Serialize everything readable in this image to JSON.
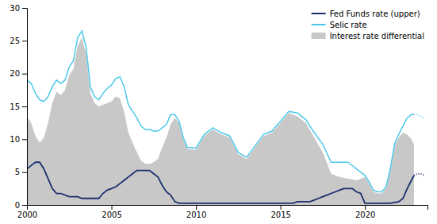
{
  "chart_data": {
    "type": "line",
    "xlim": [
      2000,
      2023.7
    ],
    "xticks": [
      2000,
      2005,
      2010,
      2015,
      2020
    ],
    "ylim": [
      0,
      30
    ],
    "yticks": [
      0,
      5,
      10,
      15,
      20,
      25,
      30
    ],
    "grid": false,
    "legend": "upper right",
    "series": [
      {
        "name": "Fed Funds rate (upper)",
        "type": "line",
        "color": "#1a2f6e",
        "line_style": "solid",
        "x": [
          2000.0,
          2000.25,
          2000.5,
          2000.75,
          2001.0,
          2001.25,
          2001.5,
          2001.75,
          2002.0,
          2002.25,
          2002.5,
          2002.75,
          2003.0,
          2003.25,
          2003.5,
          2003.75,
          2004.0,
          2004.25,
          2004.5,
          2004.75,
          2005.0,
          2005.25,
          2005.5,
          2005.75,
          2006.0,
          2006.25,
          2006.5,
          2006.75,
          2007.0,
          2007.25,
          2007.5,
          2007.75,
          2008.0,
          2008.25,
          2008.5,
          2008.75,
          2009.0,
          2009.5,
          2010.0,
          2010.5,
          2011.0,
          2011.5,
          2012.0,
          2012.5,
          2013.0,
          2013.5,
          2014.0,
          2014.5,
          2015.0,
          2015.25,
          2015.5,
          2015.75,
          2016.0,
          2016.25,
          2016.5,
          2016.75,
          2017.0,
          2017.25,
          2017.5,
          2017.75,
          2018.0,
          2018.25,
          2018.5,
          2018.75,
          2019.0,
          2019.25,
          2019.5,
          2019.75,
          2020.0,
          2020.25,
          2020.5,
          2020.75,
          2021.0,
          2021.5,
          2022.0,
          2022.25,
          2022.5,
          2022.75,
          2022.9
        ],
        "values": [
          5.5,
          6.0,
          6.5,
          6.5,
          5.5,
          4.0,
          2.5,
          1.75,
          1.75,
          1.5,
          1.25,
          1.25,
          1.25,
          1.0,
          1.0,
          1.0,
          1.0,
          1.0,
          1.75,
          2.25,
          2.5,
          2.75,
          3.25,
          3.75,
          4.25,
          4.75,
          5.25,
          5.25,
          5.25,
          5.25,
          4.75,
          4.25,
          3.0,
          2.0,
          1.5,
          0.5,
          0.25,
          0.25,
          0.25,
          0.25,
          0.25,
          0.25,
          0.25,
          0.25,
          0.25,
          0.25,
          0.25,
          0.25,
          0.25,
          0.25,
          0.25,
          0.25,
          0.5,
          0.5,
          0.5,
          0.5,
          0.75,
          1.0,
          1.25,
          1.5,
          1.75,
          2.0,
          2.25,
          2.5,
          2.5,
          2.5,
          2.0,
          1.75,
          0.25,
          0.25,
          0.25,
          0.25,
          0.25,
          0.25,
          0.5,
          1.0,
          2.5,
          3.75,
          4.5
        ]
      },
      {
        "type": "line",
        "color": "#1a2f6e",
        "line_style": "dotted",
        "x": [
          2022.9,
          2023.1,
          2023.3,
          2023.5
        ],
        "values": [
          4.5,
          4.75,
          4.75,
          4.5
        ]
      },
      {
        "name": "Selic rate",
        "type": "line",
        "color": "#4dc8e8",
        "line_style": "solid",
        "x": [
          2000.0,
          2000.25,
          2000.5,
          2000.75,
          2001.0,
          2001.25,
          2001.5,
          2001.75,
          2002.0,
          2002.25,
          2002.5,
          2002.75,
          2003.0,
          2003.25,
          2003.5,
          2003.75,
          2004.0,
          2004.25,
          2004.5,
          2004.75,
          2005.0,
          2005.25,
          2005.5,
          2005.75,
          2006.0,
          2006.25,
          2006.5,
          2006.75,
          2007.0,
          2007.25,
          2007.5,
          2007.75,
          2008.0,
          2008.25,
          2008.5,
          2008.75,
          2009.0,
          2009.25,
          2009.5,
          2009.75,
          2010.0,
          2010.5,
          2011.0,
          2011.5,
          2012.0,
          2012.5,
          2013.0,
          2013.5,
          2014.0,
          2014.5,
          2015.0,
          2015.5,
          2016.0,
          2016.5,
          2017.0,
          2017.5,
          2018.0,
          2018.5,
          2019.0,
          2019.5,
          2020.0,
          2020.25,
          2020.5,
          2020.75,
          2021.0,
          2021.25,
          2021.5,
          2021.75,
          2022.0,
          2022.25,
          2022.5,
          2022.75,
          2022.9
        ],
        "values": [
          19.0,
          18.5,
          17.0,
          16.0,
          15.75,
          16.5,
          18.0,
          19.0,
          18.5,
          19.0,
          21.0,
          22.0,
          25.5,
          26.5,
          24.0,
          18.0,
          16.5,
          16.0,
          17.0,
          17.75,
          18.25,
          19.25,
          19.5,
          18.0,
          15.25,
          14.25,
          13.25,
          12.0,
          11.5,
          11.5,
          11.25,
          11.25,
          11.75,
          12.25,
          13.75,
          13.75,
          12.75,
          10.25,
          8.75,
          8.75,
          8.65,
          10.75,
          11.75,
          11.0,
          10.5,
          8.0,
          7.25,
          9.0,
          10.75,
          11.25,
          12.75,
          14.25,
          14.0,
          13.0,
          11.0,
          9.25,
          6.5,
          6.5,
          6.5,
          5.5,
          4.5,
          3.5,
          2.25,
          2.0,
          2.0,
          2.75,
          5.5,
          9.25,
          10.75,
          12.0,
          13.25,
          13.75,
          13.75
        ]
      },
      {
        "type": "line",
        "color": "#4dc8e8",
        "line_style": "dotted",
        "x": [
          2022.9,
          2023.1,
          2023.3,
          2023.5
        ],
        "values": [
          13.75,
          13.75,
          13.5,
          13.25
        ]
      },
      {
        "name": "Interest rate differential",
        "type": "area",
        "color": "#c8c8c8",
        "x": [
          2000.0,
          2000.25,
          2000.5,
          2000.75,
          2001.0,
          2001.25,
          2001.5,
          2001.75,
          2002.0,
          2002.25,
          2002.5,
          2002.75,
          2003.0,
          2003.25,
          2003.5,
          2003.75,
          2004.0,
          2004.25,
          2004.5,
          2004.75,
          2005.0,
          2005.25,
          2005.5,
          2005.75,
          2006.0,
          2006.25,
          2006.5,
          2006.75,
          2007.0,
          2007.25,
          2007.5,
          2007.75,
          2008.0,
          2008.25,
          2008.5,
          2008.75,
          2009.0,
          2009.25,
          2009.5,
          2009.75,
          2010.0,
          2010.5,
          2011.0,
          2011.5,
          2012.0,
          2012.5,
          2013.0,
          2013.5,
          2014.0,
          2014.5,
          2015.0,
          2015.5,
          2016.0,
          2016.5,
          2017.0,
          2017.5,
          2018.0,
          2018.5,
          2019.0,
          2019.5,
          2020.0,
          2020.25,
          2020.5,
          2020.75,
          2021.0,
          2021.25,
          2021.5,
          2021.75,
          2022.0,
          2022.25,
          2022.5,
          2022.75,
          2022.9
        ],
        "values": [
          13.5,
          12.5,
          10.5,
          9.5,
          10.25,
          12.5,
          15.5,
          17.25,
          16.75,
          17.5,
          19.75,
          20.75,
          24.25,
          25.5,
          23.0,
          17.0,
          15.5,
          15.0,
          15.25,
          15.5,
          15.75,
          16.5,
          16.25,
          14.25,
          11.0,
          9.5,
          8.0,
          6.75,
          6.25,
          6.25,
          6.5,
          7.0,
          8.75,
          10.25,
          12.25,
          13.25,
          12.5,
          10.0,
          8.5,
          8.5,
          8.4,
          10.5,
          11.5,
          10.75,
          10.25,
          7.75,
          7.0,
          8.75,
          10.5,
          11.0,
          12.5,
          14.0,
          13.5,
          12.5,
          10.25,
          8.0,
          4.75,
          4.25,
          4.0,
          3.75,
          4.25,
          3.25,
          2.0,
          1.75,
          1.75,
          2.5,
          5.25,
          9.0,
          10.25,
          11.0,
          10.75,
          10.0,
          9.25
        ]
      }
    ]
  }
}
